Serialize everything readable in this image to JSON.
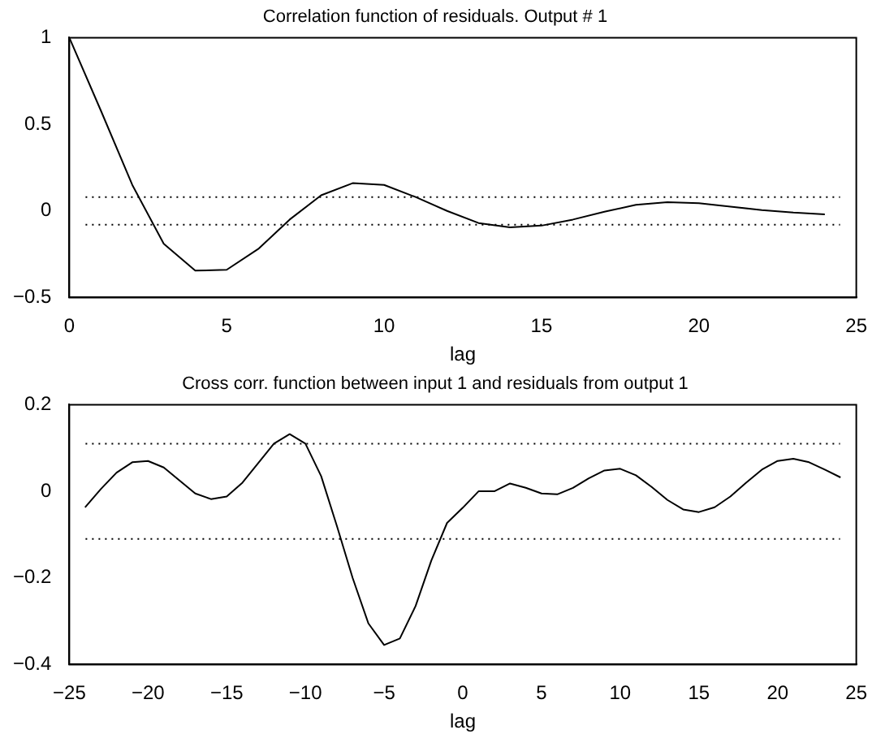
{
  "chart_data": [
    {
      "type": "line",
      "title": "Correlation function of residuals. Output # 1",
      "xlabel": "lag",
      "x": [
        0,
        1,
        2,
        3,
        4,
        5,
        6,
        7,
        8,
        9,
        10,
        11,
        12,
        13,
        14,
        15,
        16,
        17,
        18,
        19,
        20,
        21,
        22,
        23,
        24
      ],
      "series": [
        {
          "color": "#000000",
          "values": [
            1,
            0.58,
            0.15,
            -0.19,
            -0.345,
            -0.34,
            -0.22,
            -0.05,
            0.09,
            0.16,
            0.15,
            0.08,
            0,
            -0.07,
            -0.095,
            -0.085,
            -0.05,
            -0.005,
            0.035,
            0.05,
            0.045,
            0.025,
            0.005,
            -0.01,
            -0.02
          ]
        }
      ],
      "xlim": [
        0,
        25
      ],
      "xticks": [
        0,
        5,
        10,
        15,
        20,
        25
      ],
      "ylim": [
        -0.5,
        1
      ],
      "yticks": [
        -0.5,
        0,
        0.5,
        1
      ],
      "ref_lines": [
        {
          "axis": "y",
          "value": 0.08,
          "color": "#000000",
          "line_style": "dotted"
        },
        {
          "axis": "y",
          "value": -0.08,
          "color": "#000000",
          "line_style": "dotted"
        }
      ],
      "grid": false,
      "legend": false,
      "marker": "none",
      "line_style": "solid"
    },
    {
      "type": "line",
      "title": "Cross corr. function between input 1 and residuals from output 1",
      "xlabel": "lag",
      "x": [
        -24,
        -23,
        -22,
        -21,
        -20,
        -19,
        -18,
        -17,
        -16,
        -15,
        -14,
        -13,
        -12,
        -11,
        -10,
        -9,
        -8,
        -7,
        -6,
        -5,
        -4,
        -3,
        -2,
        -1,
        0,
        1,
        2,
        3,
        4,
        5,
        6,
        7,
        8,
        9,
        10,
        11,
        12,
        13,
        14,
        15,
        16,
        17,
        18,
        19,
        20,
        21,
        22,
        23,
        24
      ],
      "series": [
        {
          "color": "#000000",
          "values": [
            -0.037,
            0.005,
            0.043,
            0.067,
            0.07,
            0.055,
            0.025,
            -0.005,
            -0.018,
            -0.012,
            0.02,
            0.065,
            0.11,
            0.132,
            0.11,
            0.035,
            -0.08,
            -0.2,
            -0.305,
            -0.355,
            -0.34,
            -0.265,
            -0.16,
            -0.073,
            -0.038,
            0,
            0,
            0.018,
            0.008,
            -0.005,
            -0.007,
            0.008,
            0.03,
            0.048,
            0.052,
            0.037,
            0.01,
            -0.02,
            -0.042,
            -0.048,
            -0.037,
            -0.012,
            0.02,
            0.05,
            0.07,
            0.075,
            0.067,
            0.05,
            0.032
          ]
        }
      ],
      "xlim": [
        -25,
        25
      ],
      "xticks": [
        -25,
        -20,
        -15,
        -10,
        -5,
        0,
        5,
        10,
        15,
        20,
        25
      ],
      "ylim": [
        -0.4,
        0.2
      ],
      "yticks": [
        -0.4,
        -0.2,
        0,
        0.2
      ],
      "ref_lines": [
        {
          "axis": "y",
          "value": 0.11,
          "color": "#000000",
          "line_style": "dotted"
        },
        {
          "axis": "y",
          "value": -0.11,
          "color": "#000000",
          "line_style": "dotted"
        }
      ],
      "grid": false,
      "legend": false,
      "marker": "none",
      "line_style": "solid"
    }
  ]
}
